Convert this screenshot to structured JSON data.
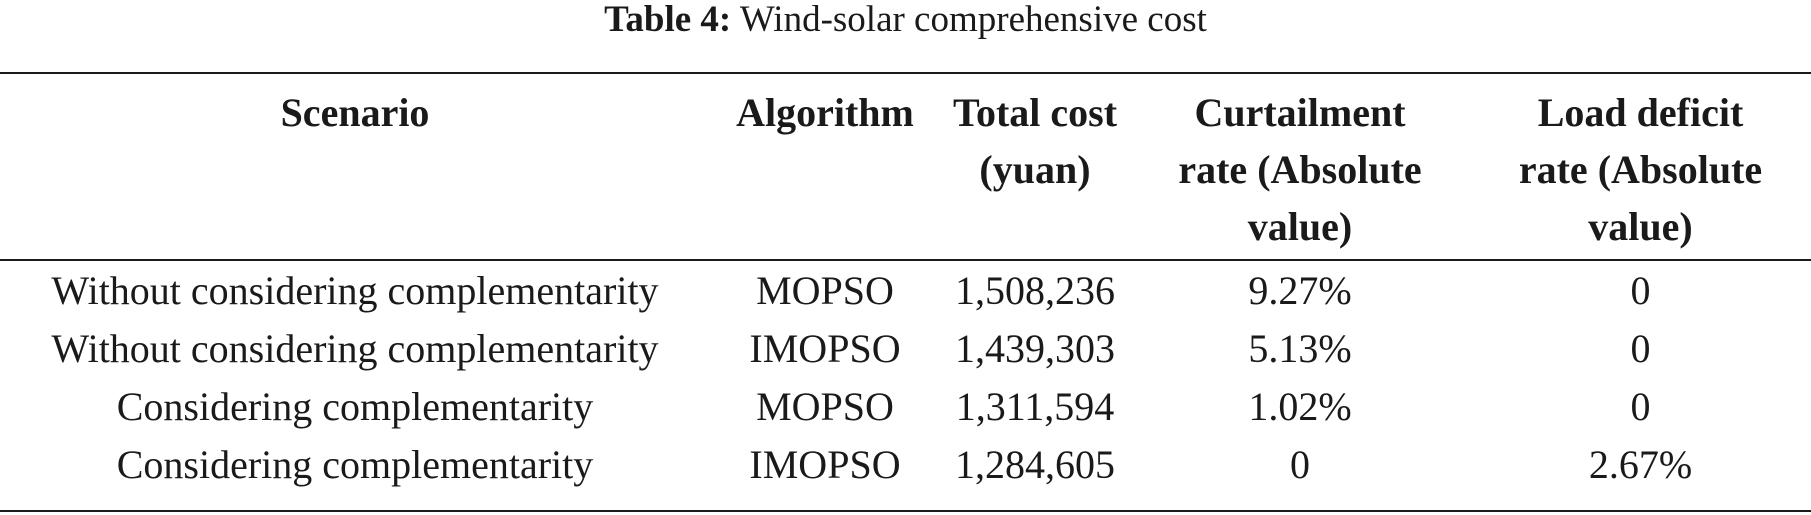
{
  "caption": {
    "label": "Table 4:",
    "title": "Wind-solar comprehensive cost"
  },
  "table": {
    "headers": [
      [
        "Scenario"
      ],
      [
        "Algorithm"
      ],
      [
        "Total cost",
        "(yuan)"
      ],
      [
        "Curtailment",
        "rate (Absolute",
        "value)"
      ],
      [
        "Load deficit",
        "rate (Absolute",
        "value)"
      ]
    ],
    "rows": [
      [
        "Without considering complementarity",
        "MOPSO",
        "1,508,236",
        "9.27%",
        "0"
      ],
      [
        "Without considering complementarity",
        "IMOPSO",
        "1,439,303",
        "5.13%",
        "0"
      ],
      [
        "Considering complementarity",
        "MOPSO",
        "1,311,594",
        "1.02%",
        "0"
      ],
      [
        "Considering complementarity",
        "IMOPSO",
        "1,284,605",
        "0",
        "2.67%"
      ]
    ]
  }
}
